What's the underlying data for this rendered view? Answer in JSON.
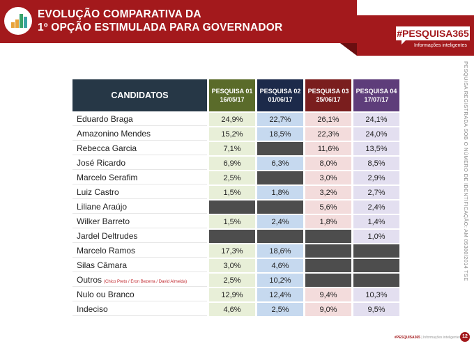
{
  "header": {
    "title_line1": "EVOLUÇÃO COMPARATIVA DA",
    "title_line2": "1º OPÇÃO ESTIMULADA PARA GOVERNADOR",
    "brand": "#PESQUISA365",
    "brand_sub": "Informações inteligentes",
    "icon": "bar-chart-icon"
  },
  "table": {
    "columns": [
      {
        "label": "PESQUISA 01",
        "date": "16/05/17",
        "color": "#5a6b2a"
      },
      {
        "label": "PESQUISA 02",
        "date": "01/06/17",
        "color": "#1c2a4a"
      },
      {
        "label": "PESQUISA 03",
        "date": "25/06/17",
        "color": "#7a1e1e"
      },
      {
        "label": "PESQUISA 04",
        "date": "17/07/17",
        "color": "#5e3d7a"
      }
    ],
    "name_header": "CANDIDATOS",
    "rows": [
      {
        "name": "Eduardo Braga",
        "values": [
          "24,9%",
          "22,7%",
          "26,1%",
          "24,1%"
        ]
      },
      {
        "name": "Amazonino Mendes",
        "values": [
          "15,2%",
          "18,5%",
          "22,3%",
          "24,0%"
        ]
      },
      {
        "name": "Rebecca Garcia",
        "values": [
          "7,1%",
          null,
          "11,6%",
          "13,5%"
        ]
      },
      {
        "name": "José Ricardo",
        "values": [
          "6,9%",
          "6,3%",
          "8,0%",
          "8,5%"
        ]
      },
      {
        "name": "Marcelo Serafim",
        "values": [
          "2,5%",
          null,
          "3,0%",
          "2,9%"
        ]
      },
      {
        "name": "Luiz Castro",
        "values": [
          "1,5%",
          "1,8%",
          "3,2%",
          "2,7%"
        ]
      },
      {
        "name": "Liliane Araújo",
        "values": [
          null,
          null,
          "5,6%",
          "2,4%"
        ]
      },
      {
        "name": "Wilker Barreto",
        "values": [
          "1,5%",
          "2,4%",
          "1,8%",
          "1,4%"
        ]
      },
      {
        "name": "Jardel Deltrudes",
        "values": [
          null,
          null,
          null,
          "1,0%"
        ]
      },
      {
        "name": "Marcelo Ramos",
        "values": [
          "17,3%",
          "18,6%",
          null,
          null
        ]
      },
      {
        "name": "Silas Câmara",
        "values": [
          "3,0%",
          "4,6%",
          null,
          null
        ]
      },
      {
        "name": "Outros",
        "note": "(Chico Preto / Eron Bezerra / David Almeida)",
        "values": [
          "2,5%",
          "10,2%",
          null,
          null
        ]
      },
      {
        "name": "Nulo ou Branco",
        "values": [
          "12,9%",
          "12,4%",
          "9,4%",
          "10,3%"
        ]
      },
      {
        "name": "Indeciso",
        "values": [
          "4,6%",
          "2,5%",
          "9,0%",
          "9,5%"
        ]
      }
    ]
  },
  "side_note": "PESQUISA REGISTRADA SOB O NÚMERO DE IDENTIFICAÇÃO: AM 05380/2014 TSE",
  "footer": {
    "brand": "#PESQUISA365",
    "sub": "Informações inteligentes",
    "page": "12"
  }
}
